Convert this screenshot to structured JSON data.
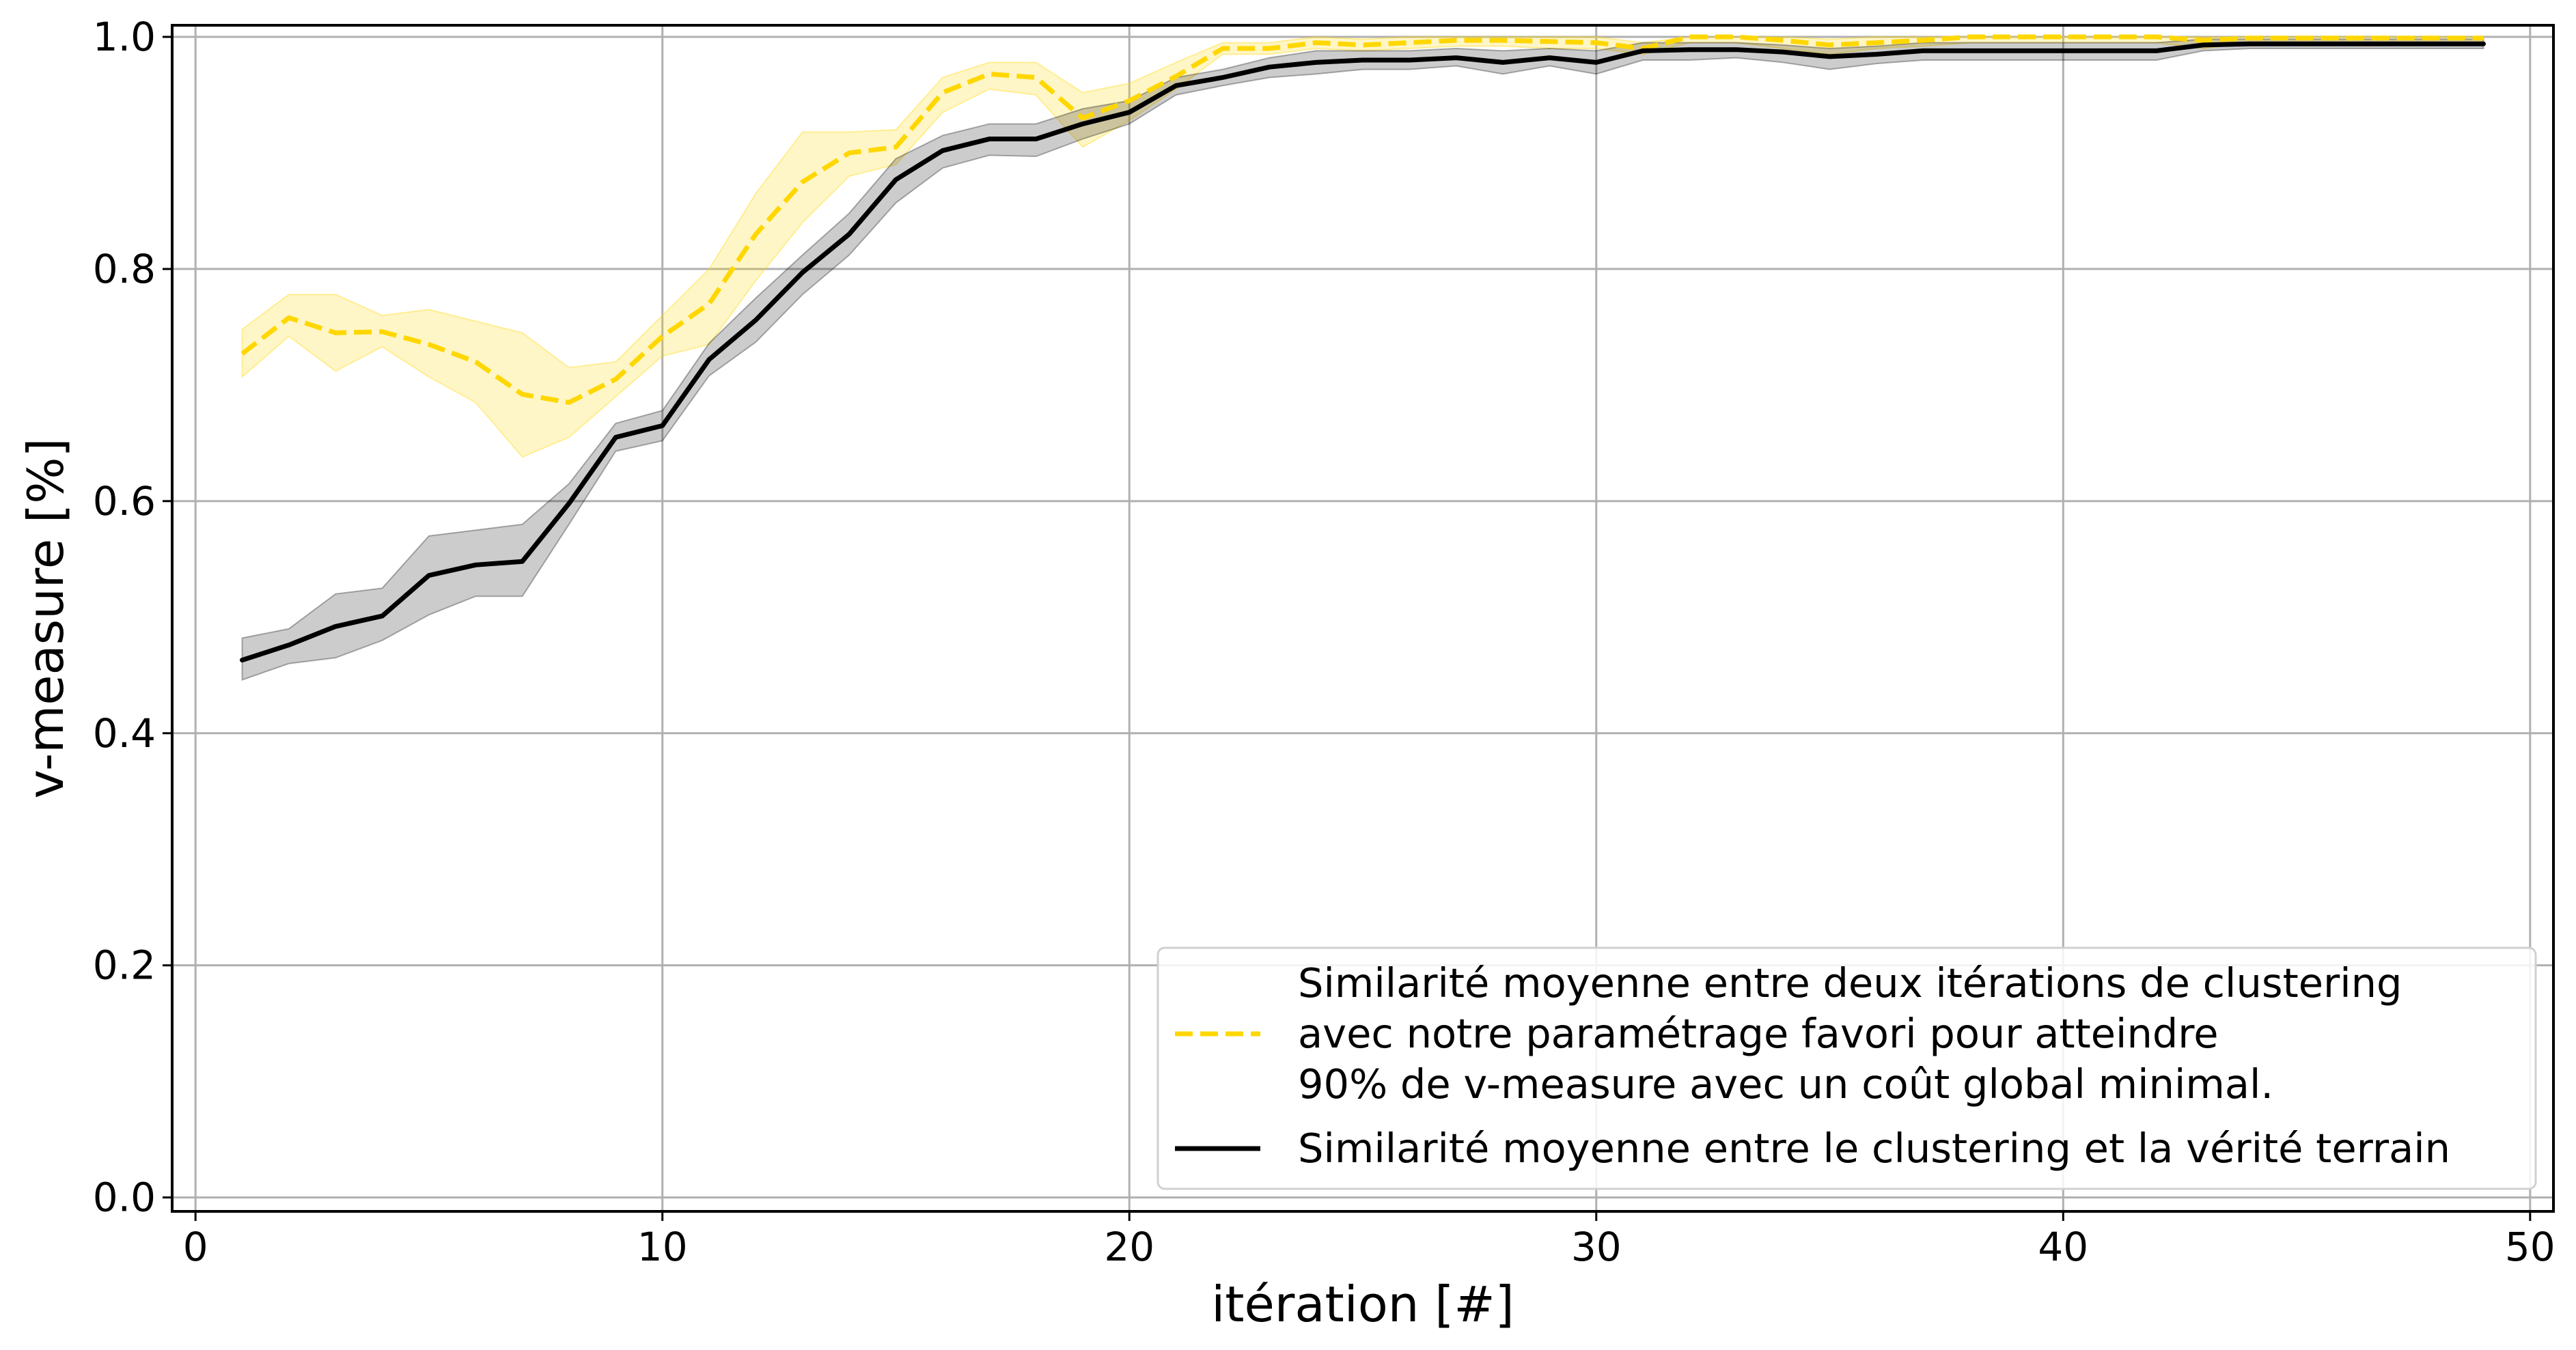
{
  "chart_data": {
    "type": "line",
    "xlabel": "itération [#]",
    "ylabel": "v-measure [%]",
    "xlim": [
      -0.5,
      50.5
    ],
    "ylim": [
      -0.012,
      1.01
    ],
    "xticks": [
      0,
      10,
      20,
      30,
      40,
      50
    ],
    "yticks": [
      0.0,
      0.2,
      0.4,
      0.6,
      0.8,
      1.0
    ],
    "xtick_labels": [
      "0",
      "10",
      "20",
      "30",
      "40",
      "50"
    ],
    "ytick_labels": [
      "0.0",
      "0.2",
      "0.4",
      "0.6",
      "0.8",
      "1.0"
    ],
    "grid": true,
    "legend_position": "bottom-right",
    "x": [
      1,
      2,
      3,
      4,
      5,
      6,
      7,
      8,
      9,
      10,
      11,
      12,
      13,
      14,
      15,
      16,
      17,
      18,
      19,
      20,
      21,
      22,
      23,
      24,
      25,
      26,
      27,
      28,
      29,
      30,
      31,
      32,
      33,
      34,
      35,
      36,
      37,
      38,
      39,
      40,
      41,
      42,
      43,
      44,
      45,
      46,
      47,
      48,
      49
    ],
    "series": [
      {
        "name": "Similarité moyenne entre deux itérations de clustering avec notre paramétrage favori pour atteindre 90% de v-measure avec un coût global minimal.",
        "legend_lines": [
          "Similarité moyenne entre deux itérations de clustering",
          "avec notre paramétrage favori pour atteindre",
          "90% de v-measure avec un coût global minimal."
        ],
        "color": "#FFD700",
        "style": "dashed",
        "values": [
          0.727,
          0.758,
          0.745,
          0.746,
          0.735,
          0.72,
          0.692,
          0.685,
          0.705,
          0.742,
          0.77,
          0.83,
          0.875,
          0.9,
          0.905,
          0.952,
          0.968,
          0.965,
          0.93,
          0.945,
          0.966,
          0.99,
          0.99,
          0.995,
          0.993,
          0.995,
          0.997,
          0.997,
          0.996,
          0.995,
          0.99,
          1.0,
          1.0,
          0.997,
          0.993,
          0.995,
          0.997,
          1.0,
          1.0,
          1.0,
          1.0,
          1.0,
          0.997,
          0.999,
          0.999,
          0.999,
          0.999,
          0.999,
          0.999
        ],
        "lower": [
          0.707,
          0.742,
          0.712,
          0.733,
          0.707,
          0.685,
          0.638,
          0.655,
          0.69,
          0.725,
          0.735,
          0.79,
          0.84,
          0.88,
          0.89,
          0.935,
          0.955,
          0.95,
          0.905,
          0.928,
          0.955,
          0.985,
          0.985,
          0.99,
          0.988,
          0.99,
          0.992,
          0.992,
          0.99,
          0.99,
          0.985,
          0.995,
          0.995,
          0.99,
          0.985,
          0.99,
          0.992,
          0.995,
          0.995,
          0.995,
          0.995,
          0.995,
          0.99,
          0.995,
          0.995,
          0.995,
          0.995,
          0.995,
          0.995
        ],
        "upper": [
          0.748,
          0.778,
          0.778,
          0.76,
          0.765,
          0.755,
          0.745,
          0.715,
          0.72,
          0.76,
          0.8,
          0.865,
          0.918,
          0.918,
          0.92,
          0.965,
          0.978,
          0.978,
          0.952,
          0.96,
          0.978,
          0.995,
          0.995,
          1.0,
          0.998,
          1.0,
          1.0,
          1.0,
          1.0,
          1.0,
          0.995,
          1.0,
          1.0,
          1.0,
          0.998,
          1.0,
          1.0,
          1.0,
          1.0,
          1.0,
          1.0,
          1.0,
          1.0,
          1.0,
          1.0,
          1.0,
          1.0,
          1.0,
          1.0
        ]
      },
      {
        "name": "Similarité moyenne entre le clustering et la vérité terrain",
        "legend_lines": [
          "Similarité moyenne entre le clustering et la vérité terrain"
        ],
        "color": "#000000",
        "style": "solid",
        "values": [
          0.463,
          0.476,
          0.492,
          0.501,
          0.536,
          0.545,
          0.548,
          0.598,
          0.655,
          0.665,
          0.722,
          0.756,
          0.797,
          0.83,
          0.877,
          0.902,
          0.912,
          0.912,
          0.925,
          0.935,
          0.958,
          0.965,
          0.974,
          0.978,
          0.98,
          0.98,
          0.982,
          0.978,
          0.982,
          0.978,
          0.988,
          0.989,
          0.989,
          0.987,
          0.983,
          0.985,
          0.988,
          0.988,
          0.988,
          0.988,
          0.988,
          0.988,
          0.993,
          0.994,
          0.994,
          0.994,
          0.994,
          0.994,
          0.994
        ],
        "lower": [
          0.446,
          0.46,
          0.465,
          0.48,
          0.502,
          0.518,
          0.518,
          0.58,
          0.643,
          0.652,
          0.708,
          0.737,
          0.778,
          0.812,
          0.857,
          0.887,
          0.898,
          0.897,
          0.912,
          0.925,
          0.95,
          0.958,
          0.965,
          0.968,
          0.972,
          0.972,
          0.975,
          0.968,
          0.975,
          0.968,
          0.98,
          0.98,
          0.982,
          0.978,
          0.972,
          0.977,
          0.98,
          0.98,
          0.98,
          0.98,
          0.98,
          0.98,
          0.988,
          0.99,
          0.99,
          0.99,
          0.99,
          0.99,
          0.99
        ],
        "upper": [
          0.482,
          0.49,
          0.52,
          0.525,
          0.57,
          0.575,
          0.58,
          0.615,
          0.667,
          0.678,
          0.736,
          0.775,
          0.812,
          0.848,
          0.895,
          0.915,
          0.925,
          0.925,
          0.938,
          0.945,
          0.965,
          0.972,
          0.982,
          0.988,
          0.988,
          0.988,
          0.99,
          0.988,
          0.99,
          0.988,
          0.995,
          0.995,
          0.995,
          0.993,
          0.99,
          0.992,
          0.995,
          0.995,
          0.995,
          0.995,
          0.995,
          0.995,
          0.998,
          0.998,
          0.998,
          0.998,
          0.998,
          0.998,
          0.998
        ]
      }
    ]
  }
}
